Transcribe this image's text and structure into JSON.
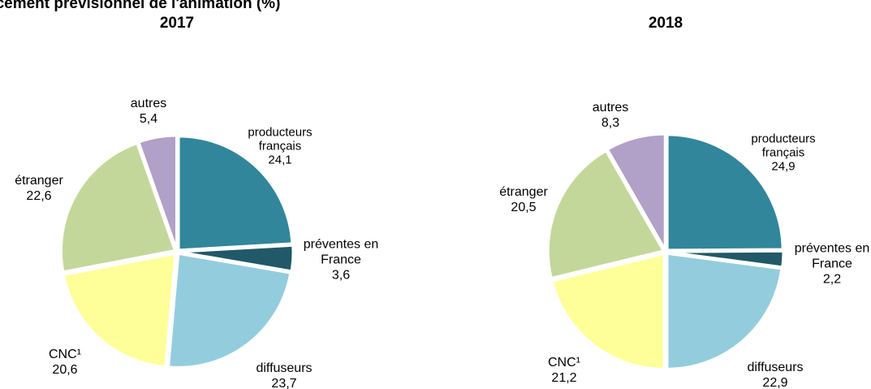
{
  "title": "cement prévisionnel de l'animation (%)",
  "chart_data": [
    {
      "type": "pie",
      "title": "2017",
      "categories": [
        "producteurs français",
        "préventes en France",
        "diffuseurs",
        "CNC¹",
        "étranger",
        "autres"
      ],
      "values": [
        24.1,
        3.6,
        23.7,
        20.6,
        22.6,
        5.4
      ],
      "value_labels": [
        "24,1",
        "3,6",
        "23,7",
        "20,6",
        "22,6",
        "5,4"
      ],
      "colors": [
        "#31869b",
        "#215968",
        "#93cddd",
        "#ffff99",
        "#c4d79b",
        "#b1a0c7"
      ]
    },
    {
      "type": "pie",
      "title": "2018",
      "categories": [
        "producteurs français",
        "préventes en France",
        "diffuseurs",
        "CNC¹",
        "étranger",
        "autres"
      ],
      "values": [
        24.9,
        2.2,
        22.9,
        21.2,
        20.5,
        8.3
      ],
      "value_labels": [
        "24,9",
        "2,2",
        "22,9",
        "21,2",
        "20,5",
        "8,3"
      ],
      "colors": [
        "#31869b",
        "#215968",
        "#93cddd",
        "#ffff99",
        "#c4d79b",
        "#b1a0c7"
      ]
    }
  ]
}
